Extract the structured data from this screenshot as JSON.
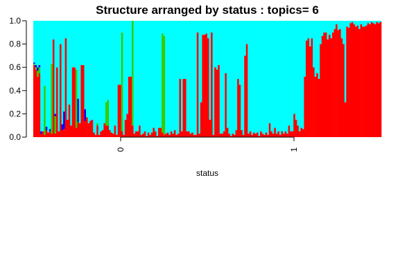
{
  "chart_data": {
    "type": "bar",
    "subtype": "stacked-proportion (structure plot)",
    "title": "Structure arranged by status : topics= 6",
    "xlabel": "status",
    "ylabel": "",
    "ylim": [
      0,
      1
    ],
    "y_ticks": [
      "0.0",
      "0.2",
      "0.4",
      "0.6",
      "0.8",
      "1.0"
    ],
    "x_ticks": [
      "0",
      "1"
    ],
    "groups": [
      "0",
      "1"
    ],
    "grid": false,
    "legend": "none",
    "topic_colors": [
      "#ff0000",
      "#33cc00",
      "#0000ff",
      "#ff00ff",
      "#ffff00",
      "#00ffff"
    ],
    "series": [
      {
        "values": [
          0.62,
          0.58,
          0.52,
          0.55,
          0.03,
          0.05,
          0.02,
          0.06,
          0.04,
          0.05,
          0.03,
          0.84,
          0.03,
          0.6,
          0.05,
          0.8,
          0.06,
          0.07,
          0.85,
          0.15,
          0.28,
          0.1,
          0.6,
          0.6,
          0.08,
          0.13,
          0.12,
          0.62,
          0.62,
          0.14,
          0.17,
          0.12,
          0.14,
          0.15,
          0.04,
          0.02,
          0.1,
          0.02,
          0.05,
          0.06,
          0.12,
          0.1,
          0.1,
          0.06,
          0.04,
          0.03,
          0.1,
          0.02,
          0.45,
          0.45,
          0.05,
          0.02,
          0.15,
          0.2,
          0.52,
          0.52,
          0.1,
          0.03,
          0.05,
          0.05,
          0.1,
          0.02,
          0.03,
          0.05,
          0.01,
          0.04,
          0.02,
          0.04,
          0.08,
          0.05,
          0.01,
          0.08,
          0.08,
          0.04,
          0.02,
          0.03,
          0.04,
          0.02,
          0.05,
          0.03,
          0.06,
          0.02,
          0.03,
          0.5,
          0.05,
          0.5,
          0.5,
          0.05,
          0.05,
          0.03,
          0.04,
          0.02,
          0.02,
          0.9,
          0.03,
          0.3,
          0.88,
          0.88,
          0.89,
          0.85,
          0.15,
          0.9,
          0.02,
          0.6,
          0.58,
          0.62,
          0.03,
          0.03,
          0.05,
          0.55,
          0.08,
          0.03,
          0.01,
          0.03,
          0.02,
          0.06,
          0.5,
          0.45,
          0.06,
          0.02,
          0.7,
          0.8,
          0.03,
          0.05,
          0.02,
          0.04,
          0.03,
          0.04,
          0.01,
          0.05,
          0.03,
          0.02,
          0.04,
          0.02,
          0.12,
          0.05,
          0.03,
          0.08,
          0.03,
          0.05,
          0.02,
          0.05,
          0.03,
          0.05,
          0.03,
          0.1,
          0.05,
          0.05,
          0.2,
          0.15,
          0.1,
          0.05,
          0.08,
          0.07,
          0.52,
          0.83,
          0.85,
          0.78,
          0.85,
          0.6,
          0.52,
          0.55,
          0.5,
          0.8,
          0.87,
          0.9,
          0.9,
          0.84,
          0.88,
          0.85,
          0.9,
          0.93,
          0.97,
          0.92,
          0.93,
          0.85,
          0.8,
          0.3,
          0.95,
          0.94,
          0.98,
          0.99,
          0.97,
          0.95,
          0.96,
          0.93,
          0.97,
          0.95,
          0.95,
          0.96,
          0.98,
          0.97,
          0.99,
          0.98,
          0.97,
          0.99,
          0.98,
          0.99
        ]
      },
      {
        "values": [
          0.01,
          0.02,
          0.05,
          0.05,
          0.0,
          0.0,
          0.42,
          0.0,
          0.0,
          0.0,
          0.6,
          0.0,
          0.15,
          0.0,
          0.0,
          0.0,
          0.0,
          0.0,
          0.0,
          0.0,
          0.0,
          0.0,
          0.0,
          0.0,
          0.5,
          0.0,
          0.0,
          0.0,
          0.0,
          0.0,
          0.0,
          0.0,
          0.0,
          0.0,
          0.0,
          0.0,
          0.02,
          0.0,
          0.0,
          0.0,
          0.0,
          0.2,
          0.22,
          0.0,
          0.0,
          0.0,
          0.0,
          0.0,
          0.0,
          0.0,
          0.85,
          0.0,
          0.0,
          0.0,
          0.0,
          0.0,
          0.9,
          0.0,
          0.0,
          0.0,
          0.0,
          0.0,
          0.0,
          0.0,
          0.0,
          0.0,
          0.0,
          0.0,
          0.0,
          0.0,
          0.0,
          0.0,
          0.0,
          0.85,
          0.85,
          0.0,
          0.0,
          0.0,
          0.0,
          0.0,
          0.0,
          0.0,
          0.0,
          0.0,
          0.0,
          0.0,
          0.0,
          0.0,
          0.0,
          0.0,
          0.0,
          0.0,
          0.0,
          0.0,
          0.0,
          0.0,
          0.0,
          0.0,
          0.0,
          0.0,
          0.0,
          0.0,
          0.0,
          0.0,
          0.0,
          0.0,
          0.0,
          0.0,
          0.0,
          0.0,
          0.0,
          0.0,
          0.0,
          0.0,
          0.0,
          0.0,
          0.0,
          0.0,
          0.0,
          0.0,
          0.0,
          0.0,
          0.0,
          0.0,
          0.0,
          0.0,
          0.0,
          0.0,
          0.0,
          0.0,
          0.0,
          0.0,
          0.0,
          0.0,
          0.0,
          0.0,
          0.0,
          0.0,
          0.0,
          0.0,
          0.0,
          0.0,
          0.0,
          0.0,
          0.0,
          0.0,
          0.0,
          0.0,
          0.0,
          0.0,
          0.0,
          0.0,
          0.0,
          0.0,
          0.0,
          0.0,
          0.0,
          0.0,
          0.0,
          0.0,
          0.0,
          0.0,
          0.0,
          0.0,
          0.0,
          0.0,
          0.0,
          0.0,
          0.0,
          0.0,
          0.0,
          0.0,
          0.0,
          0.0,
          0.0,
          0.0,
          0.0,
          0.0,
          0.0,
          0.0,
          0.0,
          0.0,
          0.0,
          0.0,
          0.0,
          0.0,
          0.0,
          0.0,
          0.0,
          0.0,
          0.0,
          0.0,
          0.0,
          0.0,
          0.0,
          0.0,
          0.0,
          0.0,
          0.0,
          0.0,
          0.0,
          0.0,
          0.0,
          0.0,
          0.0
        ]
      },
      {
        "values": [
          0.01,
          0.02,
          0.03,
          0.02,
          0.02,
          0.0,
          0.0,
          0.03,
          0.0,
          0.02,
          0.0,
          0.0,
          0.02,
          0.0,
          0.0,
          0.0,
          0.05,
          0.15,
          0.0,
          0.0,
          0.0,
          0.0,
          0.0,
          0.0,
          0.0,
          0.2,
          0.0,
          0.0,
          0.0,
          0.1,
          0.0,
          0.0,
          0.0,
          0.0,
          0.0,
          0.0,
          0.0,
          0.0,
          0.0,
          0.0,
          0.0,
          0.0,
          0.0,
          0.0,
          0.0,
          0.0,
          0.0,
          0.0,
          0.0,
          0.0,
          0.0,
          0.0,
          0.0,
          0.0,
          0.0,
          0.0,
          0.0,
          0.0,
          0.0,
          0.0,
          0.0,
          0.0,
          0.0,
          0.0,
          0.0,
          0.0,
          0.0,
          0.0,
          0.0,
          0.0,
          0.0,
          0.0,
          0.0,
          0.0,
          0.0,
          0.0,
          0.0,
          0.0,
          0.0,
          0.0,
          0.0,
          0.0,
          0.0,
          0.0,
          0.0,
          0.0,
          0.0,
          0.0,
          0.0,
          0.0,
          0.0,
          0.0,
          0.0,
          0.0,
          0.0,
          0.0,
          0.0,
          0.0,
          0.0,
          0.0,
          0.0,
          0.0,
          0.0,
          0.0,
          0.0,
          0.0,
          0.0,
          0.0,
          0.0,
          0.0,
          0.0,
          0.0,
          0.0,
          0.0,
          0.0,
          0.0,
          0.0,
          0.0,
          0.0,
          0.0,
          0.0,
          0.0,
          0.0,
          0.0,
          0.0,
          0.0,
          0.0,
          0.0,
          0.0,
          0.0,
          0.0,
          0.0,
          0.0,
          0.0,
          0.0,
          0.0,
          0.0,
          0.0,
          0.0,
          0.0,
          0.0,
          0.0,
          0.0,
          0.0,
          0.0,
          0.0,
          0.0,
          0.0,
          0.0,
          0.0,
          0.0,
          0.0,
          0.0,
          0.0,
          0.0,
          0.0,
          0.0,
          0.0,
          0.0,
          0.0,
          0.0,
          0.0,
          0.0,
          0.0,
          0.0,
          0.0,
          0.0,
          0.0,
          0.0,
          0.0,
          0.0,
          0.0,
          0.0,
          0.0,
          0.0,
          0.0,
          0.0,
          0.0,
          0.0,
          0.0,
          0.0,
          0.0,
          0.0,
          0.0,
          0.0,
          0.0,
          0.0,
          0.0,
          0.0,
          0.0,
          0.0,
          0.0,
          0.0,
          0.0,
          0.0,
          0.0,
          0.0,
          0.0,
          0.0,
          0.0,
          0.0,
          0.0,
          0.0,
          0.0,
          0.0,
          0.0,
          0.0
        ]
      },
      {
        "values": [
          0.0,
          0.0,
          0.0,
          0.0,
          0.0,
          0.0,
          0.0,
          0.0,
          0.0,
          0.0,
          0.0,
          0.0,
          0.0,
          0.0,
          0.0,
          0.0,
          0.0,
          0.0,
          0.0,
          0.0,
          0.0,
          0.0,
          0.0,
          0.0,
          0.0,
          0.0,
          0.0,
          0.0,
          0.0,
          0.0,
          0.0,
          0.0,
          0.0,
          0.0,
          0.0,
          0.0,
          0.0,
          0.0,
          0.0,
          0.0,
          0.0,
          0.0,
          0.0,
          0.0,
          0.0,
          0.0,
          0.0,
          0.0,
          0.0,
          0.0,
          0.0,
          0.0,
          0.0,
          0.0,
          0.0,
          0.0,
          0.0,
          0.0,
          0.0,
          0.0,
          0.0,
          0.0,
          0.0,
          0.0,
          0.0,
          0.0,
          0.0,
          0.0,
          0.0,
          0.0,
          0.0,
          0.0,
          0.0,
          0.0,
          0.0,
          0.0,
          0.0,
          0.0,
          0.0,
          0.0,
          0.0,
          0.0,
          0.0,
          0.0,
          0.0,
          0.0,
          0.0,
          0.0,
          0.0,
          0.0,
          0.0,
          0.0,
          0.0,
          0.0,
          0.0,
          0.0,
          0.0,
          0.0,
          0.0,
          0.0,
          0.0,
          0.0,
          0.0,
          0.0,
          0.0,
          0.0,
          0.0,
          0.0,
          0.0,
          0.0,
          0.0,
          0.0,
          0.0,
          0.0,
          0.0,
          0.0,
          0.0,
          0.0,
          0.0,
          0.0,
          0.0,
          0.0,
          0.0,
          0.0,
          0.0,
          0.0,
          0.0,
          0.0,
          0.0,
          0.0,
          0.0,
          0.0,
          0.0,
          0.0,
          0.0,
          0.0,
          0.0,
          0.0,
          0.0,
          0.0,
          0.0,
          0.0,
          0.0,
          0.0,
          0.0,
          0.0,
          0.0,
          0.0,
          0.0,
          0.0,
          0.0,
          0.0,
          0.0,
          0.0,
          0.0,
          0.0,
          0.0,
          0.0,
          0.0,
          0.0,
          0.0,
          0.0,
          0.0,
          0.0,
          0.0,
          0.0,
          0.0,
          0.0,
          0.0,
          0.0,
          0.0,
          0.0,
          0.0,
          0.0,
          0.0,
          0.0,
          0.0,
          0.0,
          0.0,
          0.0,
          0.0,
          0.0,
          0.0,
          0.0,
          0.0,
          0.0,
          0.0,
          0.0,
          0.0,
          0.0,
          0.0,
          0.0,
          0.0,
          0.0,
          0.0,
          0.0,
          0.0,
          0.0,
          0.0,
          0.0,
          0.0,
          0.0,
          0.0,
          0.0,
          0.0,
          0.0
        ]
      },
      {
        "values": [
          0.0,
          0.0,
          0.0,
          0.0,
          0.0,
          0.0,
          0.0,
          0.0,
          0.0,
          0.0,
          0.0,
          0.0,
          0.0,
          0.0,
          0.0,
          0.0,
          0.0,
          0.0,
          0.0,
          0.0,
          0.0,
          0.0,
          0.0,
          0.0,
          0.0,
          0.0,
          0.0,
          0.0,
          0.0,
          0.0,
          0.0,
          0.0,
          0.0,
          0.0,
          0.0,
          0.0,
          0.0,
          0.0,
          0.0,
          0.0,
          0.0,
          0.0,
          0.0,
          0.0,
          0.0,
          0.0,
          0.0,
          0.0,
          0.0,
          0.0,
          0.0,
          0.0,
          0.0,
          0.0,
          0.0,
          0.0,
          0.0,
          0.0,
          0.0,
          0.0,
          0.0,
          0.0,
          0.0,
          0.0,
          0.0,
          0.0,
          0.0,
          0.0,
          0.0,
          0.0,
          0.0,
          0.0,
          0.0,
          0.0,
          0.0,
          0.0,
          0.0,
          0.0,
          0.0,
          0.0,
          0.0,
          0.0,
          0.0,
          0.0,
          0.0,
          0.0,
          0.0,
          0.0,
          0.0,
          0.0,
          0.0,
          0.0,
          0.0,
          0.0,
          0.0,
          0.0,
          0.0,
          0.0,
          0.0,
          0.0,
          0.0,
          0.0,
          0.0,
          0.0,
          0.0,
          0.0,
          0.0,
          0.0,
          0.0,
          0.0,
          0.0,
          0.0,
          0.0,
          0.0,
          0.0,
          0.0,
          0.0,
          0.0,
          0.0,
          0.0,
          0.0,
          0.0,
          0.0,
          0.0,
          0.0,
          0.0,
          0.0,
          0.0,
          0.0,
          0.0,
          0.0,
          0.0,
          0.0,
          0.0,
          0.0,
          0.0,
          0.0,
          0.0,
          0.0,
          0.0,
          0.0,
          0.0,
          0.0,
          0.0,
          0.0,
          0.0,
          0.0,
          0.0,
          0.0,
          0.0,
          0.0,
          0.0,
          0.0,
          0.0,
          0.0,
          0.0,
          0.0,
          0.0,
          0.0,
          0.0,
          0.0,
          0.0,
          0.0,
          0.0,
          0.0,
          0.0,
          0.0,
          0.0,
          0.0,
          0.0,
          0.0,
          0.0,
          0.0,
          0.0,
          0.0,
          0.0,
          0.0,
          0.0,
          0.0,
          0.0,
          0.0,
          0.0,
          0.0,
          0.0,
          0.0,
          0.0,
          0.0,
          0.0,
          0.0,
          0.0,
          0.0,
          0.0,
          0.0,
          0.0,
          0.0,
          0.0,
          0.0,
          0.0,
          0.0,
          0.0,
          0.0,
          0.0,
          0.0,
          0.0,
          0.0,
          0.0
        ]
      }
    ]
  }
}
